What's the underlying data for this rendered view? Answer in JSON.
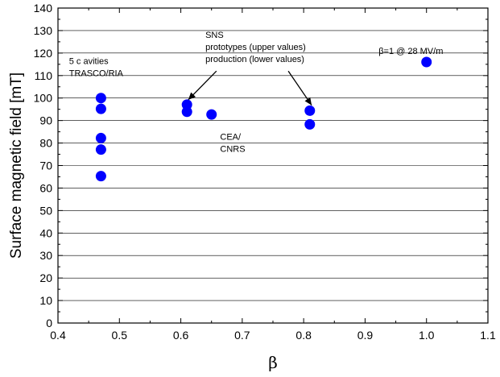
{
  "chart_data": {
    "type": "scatter",
    "xlabel": "β",
    "ylabel": "Surface magnetic field [mT]",
    "xlim": [
      0.4,
      1.1
    ],
    "ylim": [
      0,
      140
    ],
    "x_ticks": [
      "0.4",
      "0.5",
      "0.6",
      "0.7",
      "0.8",
      "0.9",
      "1.0",
      "1.1"
    ],
    "y_ticks": [
      "0",
      "10",
      "20",
      "30",
      "40",
      "50",
      "60",
      "70",
      "80",
      "90",
      "100",
      "110",
      "120",
      "130",
      "140"
    ],
    "grid": "horizontal",
    "marker_color": "#0000ff",
    "points": [
      {
        "x": 0.47,
        "y": 100
      },
      {
        "x": 0.47,
        "y": 95.2
      },
      {
        "x": 0.47,
        "y": 82.2
      },
      {
        "x": 0.47,
        "y": 77.1
      },
      {
        "x": 0.47,
        "y": 65.3
      },
      {
        "x": 0.61,
        "y": 97.1
      },
      {
        "x": 0.61,
        "y": 93.9
      },
      {
        "x": 0.65,
        "y": 92.7
      },
      {
        "x": 0.81,
        "y": 94.4
      },
      {
        "x": 0.81,
        "y": 88.3
      },
      {
        "x": 1.0,
        "y": 116
      }
    ],
    "annotations": [
      {
        "id": "trasco",
        "lines": [
          "5 c avities",
          "TRASCO/RIA"
        ],
        "x": 0.418,
        "y": 115.2
      },
      {
        "id": "sns",
        "lines": [
          "SNS",
          "prototypes (upper values)",
          "production (lower values)"
        ],
        "x": 0.64,
        "y": 126.8
      },
      {
        "id": "cea",
        "lines": [
          "CEA/",
          "CNRS"
        ],
        "x": 0.664,
        "y": 81.5
      },
      {
        "id": "beta1",
        "lines": [
          "β=1 @ 28 MV/m"
        ],
        "x": 0.922,
        "y": 119.6
      }
    ],
    "arrows": [
      {
        "from": [
          0.658,
          112
        ],
        "to": [
          0.612,
          99.2
        ]
      },
      {
        "from": [
          0.775,
          112
        ],
        "to": [
          0.813,
          96.8
        ]
      }
    ]
  }
}
